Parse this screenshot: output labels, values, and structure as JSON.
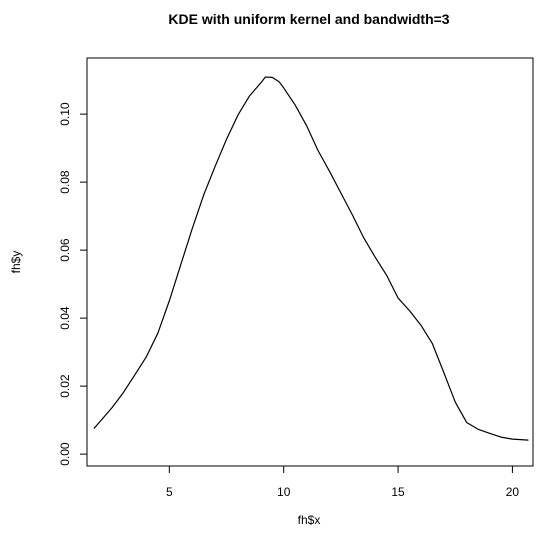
{
  "chart_data": {
    "type": "line",
    "title": "KDE with uniform kernel and bandwidth=3",
    "xlabel": "fh$x",
    "ylabel": "fh$y",
    "xlim": [
      1.4,
      20.9
    ],
    "ylim": [
      -0.0035,
      0.1165
    ],
    "x_ticks": [
      5,
      10,
      15,
      20
    ],
    "y_ticks": [
      0.0,
      0.02,
      0.04,
      0.06,
      0.08,
      0.1
    ],
    "x_tick_labels": [
      "5",
      "10",
      "15",
      "20"
    ],
    "y_tick_labels": [
      "0.00",
      "0.02",
      "0.04",
      "0.06",
      "0.08",
      "0.10"
    ],
    "grid": false,
    "legend": "none",
    "series": [
      {
        "color": "#000000",
        "x": [
          1.7,
          2.0,
          2.5,
          3.0,
          3.5,
          4.0,
          4.5,
          5.0,
          5.5,
          6.0,
          6.5,
          7.0,
          7.5,
          8.0,
          8.5,
          9.0,
          9.2,
          9.5,
          9.8,
          10.0,
          10.5,
          11.0,
          11.5,
          12.0,
          12.5,
          13.0,
          13.5,
          14.0,
          14.5,
          15.0,
          15.5,
          16.0,
          16.5,
          17.0,
          17.5,
          18.0,
          18.5,
          19.0,
          19.5,
          20.0,
          20.7
        ],
        "y": [
          0.0075,
          0.0098,
          0.0137,
          0.0182,
          0.0234,
          0.0287,
          0.0356,
          0.0451,
          0.0557,
          0.0663,
          0.0762,
          0.0846,
          0.0926,
          0.0997,
          0.1053,
          0.1092,
          0.1109,
          0.1108,
          0.1095,
          0.1077,
          0.1027,
          0.0966,
          0.0893,
          0.0832,
          0.0768,
          0.0704,
          0.0636,
          0.0579,
          0.0526,
          0.0459,
          0.0422,
          0.0379,
          0.0325,
          0.024,
          0.0153,
          0.0093,
          0.0073,
          0.0061,
          0.005,
          0.0044,
          0.0041
        ]
      }
    ]
  }
}
